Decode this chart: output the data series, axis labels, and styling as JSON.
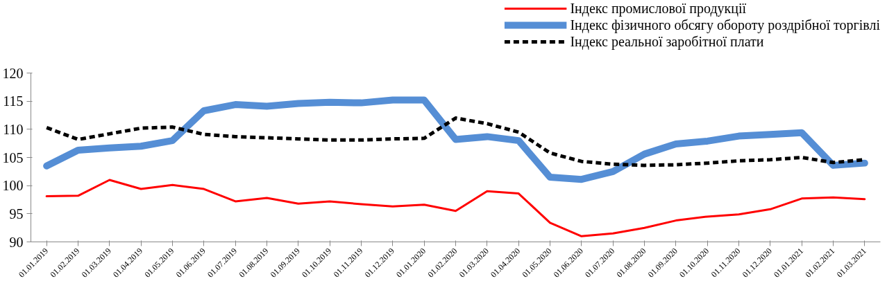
{
  "chart_data": {
    "type": "line",
    "categories": [
      "01.01.2019",
      "01.02.2019",
      "01.03.2019",
      "01.04.2019",
      "01.05.2019",
      "01.06.2019",
      "01.07.2019",
      "01.08.2019",
      "01.09.2019",
      "01.10.2019",
      "01.11.2019",
      "01.12.2019",
      "01.01.2020",
      "01.02.2020",
      "01.03.2020",
      "01.04.2020",
      "01.05.2020",
      "01.06.2020",
      "01.07.2020",
      "01.08.2020",
      "01.09.2020",
      "01.10.2020",
      "01.11.2020",
      "01.12.2020",
      "01.01.2021",
      "01.02.2021",
      "01.03.2021"
    ],
    "series": [
      {
        "name": "Індекс промислової продукції",
        "color": "#ff0000",
        "line_style": "solid",
        "values": [
          98.1,
          98.2,
          101.0,
          99.4,
          100.1,
          99.4,
          97.2,
          97.8,
          96.8,
          97.2,
          96.7,
          96.3,
          96.6,
          95.5,
          99.0,
          98.6,
          93.4,
          91.0,
          91.5,
          92.5,
          93.8,
          94.5,
          94.9,
          95.8,
          97.7,
          97.9,
          97.6
        ]
      },
      {
        "name": "Індекс фізичного обсягу обороту роздрібної торгівлі",
        "color": "#558ed5",
        "line_style": "solid",
        "values": [
          103.5,
          106.3,
          106.7,
          107.0,
          108.0,
          113.3,
          114.4,
          114.1,
          114.6,
          114.8,
          114.7,
          115.2,
          115.2,
          108.2,
          108.7,
          108.0,
          101.5,
          101.1,
          102.5,
          105.6,
          107.4,
          107.9,
          108.8,
          109.1,
          109.4,
          103.6,
          104.0
        ]
      },
      {
        "name": "Індекс реальної заробітної плати",
        "color": "#000000",
        "line_style": "dashed",
        "values": [
          110.3,
          108.2,
          109.2,
          110.2,
          110.4,
          109.1,
          108.7,
          108.5,
          108.3,
          108.1,
          108.1,
          108.3,
          108.4,
          112.0,
          111.0,
          109.5,
          105.8,
          104.3,
          103.8,
          103.6,
          103.7,
          104.0,
          104.4,
          104.6,
          105.0,
          104.1,
          104.6
        ]
      }
    ],
    "ylim": [
      90,
      120
    ],
    "yticks": [
      90,
      95,
      100,
      105,
      110,
      115,
      120
    ],
    "grid": false,
    "legend": "top right",
    "marker": "none"
  }
}
